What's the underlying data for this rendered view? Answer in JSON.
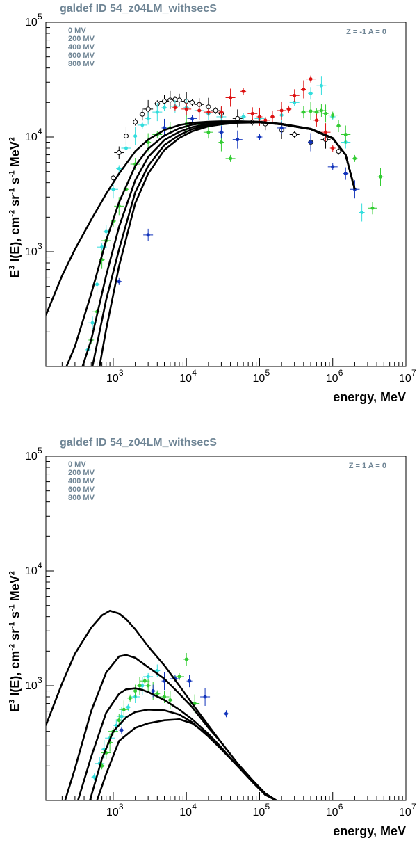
{
  "chart_data": [
    {
      "type": "line",
      "title": "galdef ID 54_z04LM_withsecS",
      "xlabel": "energy, MeV",
      "ylabel": "E^3 I(E), cm^-2 sr^-1 s^-1 MeV^2",
      "ylabel_parts": {
        "a": "E",
        "b": "3",
        "c": " I(E), cm",
        "d": "-2",
        "e": " sr",
        "f": "-1",
        "g": " s",
        "h": "-1",
        "i": " MeV",
        "j": "2"
      },
      "xscale": "log",
      "yscale": "log",
      "xlim": [
        120,
        10000000
      ],
      "ylim": [
        100,
        100000
      ],
      "annotation": "Z = -1   A = 0",
      "legend": [
        "0 MV",
        "200 MV",
        "400 MV",
        "600 MV",
        "800 MV"
      ],
      "series": [
        {
          "name": "0 MV",
          "x": [
            120,
            200,
            300,
            500,
            800,
            1200,
            2000,
            3000,
            5000,
            8000,
            12000,
            20000,
            30000,
            50000,
            100000,
            200000,
            500000,
            1000000,
            1500000,
            2000000
          ],
          "y": [
            280,
            620,
            1050,
            1900,
            3200,
            4800,
            7500,
            9500,
            11500,
            12700,
            13300,
            13600,
            13700,
            13700,
            13500,
            13000,
            11800,
            9800,
            7000,
            3500
          ]
        },
        {
          "name": "200 MV",
          "x": [
            230,
            300,
            500,
            800,
            1200,
            2000,
            3000,
            5000,
            8000,
            12000,
            20000,
            30000,
            50000,
            100000,
            200000,
            500000,
            1000000,
            1500000,
            2000000
          ],
          "y": [
            100,
            150,
            430,
            1250,
            2700,
            5600,
            7900,
            10300,
            11900,
            12800,
            13400,
            13600,
            13700,
            13600,
            13000,
            11800,
            9800,
            7000,
            3500
          ]
        },
        {
          "name": "400 MV",
          "x": [
            380,
            500,
            800,
            1200,
            2000,
            3000,
            5000,
            8000,
            12000,
            20000,
            30000,
            50000,
            100000,
            200000,
            500000,
            1000000,
            1500000,
            2000000
          ],
          "y": [
            100,
            170,
            620,
            1650,
            4200,
            6700,
            9400,
            11100,
            12200,
            13000,
            13300,
            13500,
            13500,
            12900,
            11700,
            9700,
            7000,
            3500
          ]
        },
        {
          "name": "600 MV",
          "x": [
            520,
            800,
            1200,
            2000,
            3000,
            5000,
            8000,
            12000,
            20000,
            30000,
            50000,
            100000,
            200000,
            500000,
            1000000,
            1500000,
            2000000
          ],
          "y": [
            100,
            380,
            1050,
            3300,
            5600,
            8500,
            10400,
            11700,
            12700,
            13100,
            13400,
            13500,
            12900,
            11700,
            9700,
            7000,
            3500
          ]
        },
        {
          "name": "800 MV",
          "x": [
            650,
            800,
            1200,
            2000,
            3000,
            5000,
            8000,
            12000,
            20000,
            30000,
            50000,
            100000,
            200000,
            500000,
            1000000,
            1500000,
            2000000
          ],
          "y": [
            100,
            210,
            750,
            2650,
            4800,
            7700,
            9800,
            11200,
            12400,
            12900,
            13300,
            13400,
            12900,
            11700,
            9700,
            7000,
            3500
          ]
        }
      ],
      "points": [
        {
          "name": "black",
          "color": "#000000",
          "x": [
            1000,
            1200,
            1500,
            2000,
            2500,
            3000,
            4000,
            5000,
            6000,
            7000,
            8000,
            10000,
            12000,
            15000,
            20000,
            25000,
            30000,
            50000,
            80000,
            120000,
            200000,
            300000,
            500000,
            800000,
            1200000
          ],
          "y": [
            4400,
            7300,
            10200,
            13500,
            15800,
            17500,
            19500,
            20500,
            21000,
            21200,
            21000,
            20500,
            20000,
            19200,
            18300,
            17000,
            16000,
            14500,
            13500,
            13000,
            11500,
            10500,
            9000,
            9500,
            7500
          ]
        },
        {
          "name": "cyan",
          "color": "#33dddd",
          "x": [
            450,
            520,
            600,
            700,
            800,
            1000,
            1200,
            1500,
            2000,
            2500,
            3000,
            4000,
            5000,
            7000,
            10000,
            15000,
            20000,
            30000,
            60000,
            100000,
            200000,
            300000,
            500000,
            700000,
            1000000,
            1500000,
            2500000
          ],
          "y": [
            140,
            240,
            520,
            1100,
            1500,
            3500,
            5300,
            8000,
            10200,
            12700,
            14500,
            16500,
            18000,
            18500,
            18000,
            17000,
            16000,
            15000,
            15000,
            14500,
            15500,
            20000,
            24000,
            28000,
            15000,
            9000,
            2200
          ]
        },
        {
          "name": "green",
          "color": "#33cc33",
          "x": [
            500,
            600,
            700,
            800,
            1000,
            1200,
            1500,
            2000,
            3000,
            4000,
            6000,
            10000,
            15000,
            20000,
            30000,
            40000,
            400000,
            500000,
            600000,
            700000,
            800000,
            1000000,
            1200000,
            1500000,
            2000000,
            3500000,
            4500000
          ],
          "y": [
            170,
            300,
            850,
            1250,
            1850,
            2500,
            3500,
            5800,
            9000,
            10500,
            12000,
            13000,
            12500,
            11000,
            9000,
            6500,
            16500,
            16800,
            16500,
            17000,
            16000,
            15500,
            12500,
            10500,
            6500,
            2400,
            4500
          ]
        },
        {
          "name": "red",
          "color": "#dd1111",
          "x": [
            7000,
            10000,
            15000,
            20000,
            30000,
            40000,
            60000,
            80000,
            100000,
            120000,
            150000,
            200000,
            250000,
            300000,
            400000,
            500000,
            600000,
            800000,
            1000000
          ],
          "y": [
            18000,
            17500,
            17000,
            16500,
            16500,
            22000,
            25000,
            16000,
            15000,
            14000,
            15000,
            17000,
            17500,
            23000,
            26000,
            32000,
            14000,
            11000,
            8000
          ]
        },
        {
          "name": "blue",
          "color": "#1133bb",
          "x": [
            1200,
            3000,
            5000,
            12000,
            30000,
            50000,
            100000,
            200000,
            500000,
            1000000,
            1500000,
            2000000
          ],
          "y": [
            550,
            1400,
            12000,
            14500,
            11000,
            9500,
            10000,
            12000,
            9000,
            5500,
            4800,
            3500
          ]
        }
      ]
    },
    {
      "type": "line",
      "title": "galdef ID 54_z04LM_withsecS",
      "xlabel": "energy, MeV",
      "ylabel": "E^3 I(E), cm^-2 sr^-1 s^-1 MeV^2",
      "ylabel_parts": {
        "a": "E",
        "b": "3",
        "c": " I(E), cm",
        "d": "-2",
        "e": " sr",
        "f": "-1",
        "g": " s",
        "h": "-1",
        "i": " MeV",
        "j": "2"
      },
      "xscale": "log",
      "yscale": "log",
      "xlim": [
        120,
        10000000
      ],
      "ylim": [
        100,
        100000
      ],
      "annotation": "Z = 1   A = 0",
      "legend": [
        "0 MV",
        "200 MV",
        "400 MV",
        "600 MV",
        "800 MV"
      ],
      "series": [
        {
          "name": "0 MV",
          "x": [
            120,
            200,
            300,
            500,
            700,
            900,
            1200,
            1500,
            2000,
            3000,
            5000,
            8000,
            12000,
            20000,
            30000,
            50000,
            80000,
            120000,
            170000
          ],
          "y": [
            450,
            1050,
            1900,
            3200,
            4100,
            4500,
            4250,
            3800,
            3100,
            2200,
            1500,
            1000,
            700,
            450,
            320,
            210,
            150,
            115,
            100
          ]
        },
        {
          "name": "200 MV",
          "x": [
            220,
            300,
            500,
            800,
            1200,
            1500,
            2000,
            3000,
            5000,
            8000,
            12000,
            20000,
            30000,
            50000,
            80000,
            120000,
            170000
          ],
          "y": [
            100,
            190,
            600,
            1300,
            1800,
            1850,
            1750,
            1450,
            1150,
            850,
            650,
            430,
            320,
            210,
            150,
            115,
            100
          ]
        },
        {
          "name": "400 MV",
          "x": [
            330,
            500,
            800,
            1200,
            1500,
            2000,
            2500,
            3000,
            5000,
            8000,
            12000,
            20000,
            30000,
            50000,
            80000,
            120000,
            170000
          ],
          "y": [
            100,
            240,
            580,
            850,
            930,
            950,
            920,
            880,
            750,
            620,
            510,
            380,
            290,
            200,
            145,
            112,
            100
          ]
        },
        {
          "name": "600 MV",
          "x": [
            480,
            700,
            1000,
            1500,
            2000,
            3000,
            5000,
            8000,
            12000,
            20000,
            30000,
            50000,
            80000,
            120000,
            170000
          ],
          "y": [
            100,
            230,
            400,
            530,
            590,
            620,
            610,
            560,
            480,
            360,
            280,
            200,
            145,
            112,
            100
          ]
        },
        {
          "name": "800 MV",
          "x": [
            600,
            800,
            1200,
            2000,
            3000,
            5000,
            8000,
            12000,
            20000,
            30000,
            50000,
            80000,
            120000,
            170000
          ],
          "y": [
            100,
            170,
            330,
            430,
            470,
            500,
            510,
            470,
            370,
            280,
            200,
            145,
            112,
            100
          ]
        }
      ],
      "points": [
        {
          "name": "cyan",
          "color": "#33dddd",
          "x": [
            550,
            650,
            750,
            900,
            1100,
            1300,
            1600,
            2000,
            2500,
            3000,
            4000
          ],
          "y": [
            160,
            210,
            280,
            350,
            450,
            540,
            650,
            800,
            1000,
            1200,
            1350
          ]
        },
        {
          "name": "green",
          "color": "#33cc33",
          "x": [
            700,
            800,
            900,
            1000,
            1200,
            1400,
            1700,
            2000,
            2300,
            2700,
            3000,
            3500,
            4000,
            5000,
            6000,
            8000,
            10000,
            13000
          ],
          "y": [
            200,
            260,
            320,
            400,
            500,
            620,
            780,
            900,
            1000,
            1100,
            1000,
            900,
            850,
            800,
            750,
            1200,
            1700,
            700
          ]
        },
        {
          "name": "blue",
          "color": "#1133bb",
          "x": [
            1300,
            3500,
            5000,
            7000,
            11000,
            18000,
            35000
          ],
          "y": [
            410,
            900,
            1100,
            1150,
            1100,
            800,
            570
          ]
        }
      ]
    }
  ]
}
